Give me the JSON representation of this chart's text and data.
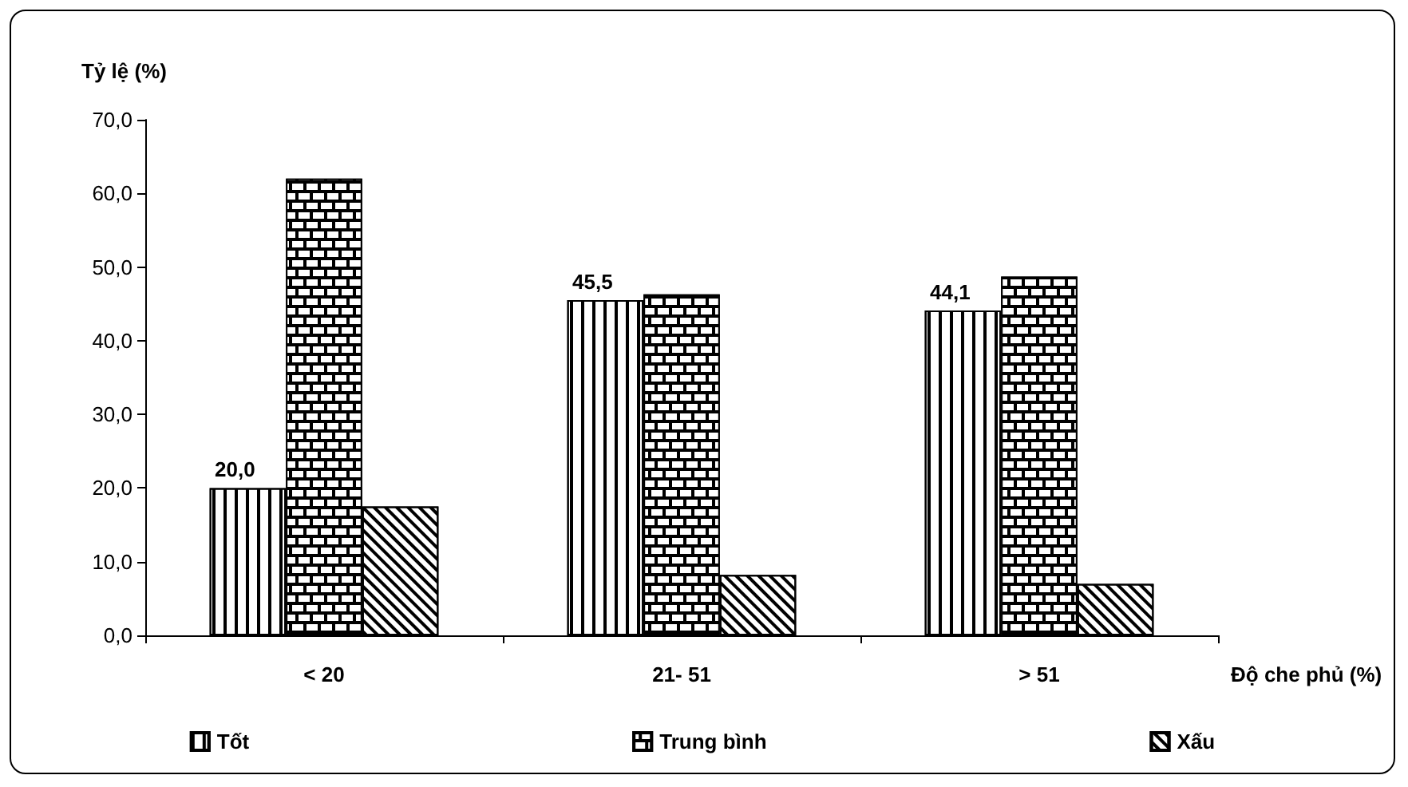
{
  "chart_data": {
    "type": "bar",
    "ylabel": "Tỷ lệ (%)",
    "xlabel": "Độ che phủ (%)",
    "categories": [
      "< 20",
      "21- 51",
      "> 51"
    ],
    "series": [
      {
        "name": "Tốt",
        "color": "#ffffff",
        "values": [
          20.0,
          45.5,
          44.1
        ],
        "value_labels": [
          "20,0",
          "45,5",
          "44,1"
        ]
      },
      {
        "name": "Trung bình",
        "color": "#000000",
        "values": [
          62.0,
          46.3,
          48.7
        ]
      },
      {
        "name": "Xấu",
        "color": "#ffffff",
        "values": [
          17.5,
          8.2,
          7.0
        ]
      }
    ],
    "ylim": [
      0,
      70
    ],
    "yticks": [
      {
        "value": 0,
        "label": "0,0"
      },
      {
        "value": 10,
        "label": "10,0"
      },
      {
        "value": 20,
        "label": "20,0"
      },
      {
        "value": 30,
        "label": "30,0"
      },
      {
        "value": 40,
        "label": "40,0"
      },
      {
        "value": 50,
        "label": "50,0"
      },
      {
        "value": 60,
        "label": "60,0"
      },
      {
        "value": 70,
        "label": "70,0"
      }
    ],
    "grid": false,
    "legend": "bottom"
  }
}
